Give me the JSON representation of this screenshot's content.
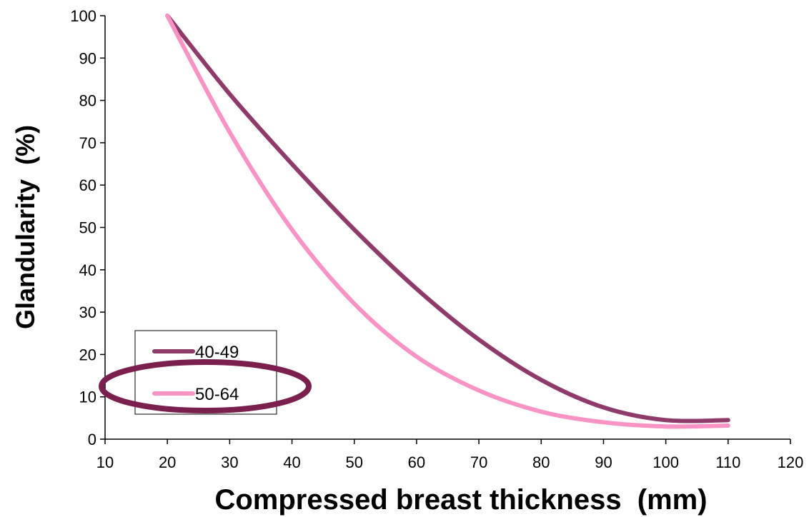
{
  "chart_data": {
    "type": "line",
    "xlabel": "Compressed breast thickness  (mm)",
    "ylabel": "Glandularity  (%)",
    "xlim": [
      10,
      120
    ],
    "ylim": [
      0,
      100
    ],
    "xticks": [
      "10",
      "20",
      "30",
      "40",
      "50",
      "60",
      "70",
      "80",
      "90",
      "100",
      "110",
      "120"
    ],
    "yticks": [
      "0",
      "10",
      "20",
      "30",
      "40",
      "50",
      "60",
      "70",
      "80",
      "90",
      "100"
    ],
    "grid": false,
    "legend_position": "bottom-left",
    "x": [
      20,
      30,
      40,
      50,
      60,
      70,
      80,
      90,
      100,
      110
    ],
    "series": [
      {
        "name": "40-49",
        "color": "#8e3a6a",
        "values": [
          100,
          81.5,
          65,
          49.5,
          35.5,
          23.5,
          14,
          7.5,
          4.5,
          4.5
        ]
      },
      {
        "name": "50-64",
        "color": "#f993c6",
        "values": [
          100,
          72.5,
          49.5,
          32,
          19.5,
          11.5,
          6.5,
          4,
          3,
          3.2
        ]
      }
    ],
    "highlight_color": "#7a1f4e"
  }
}
